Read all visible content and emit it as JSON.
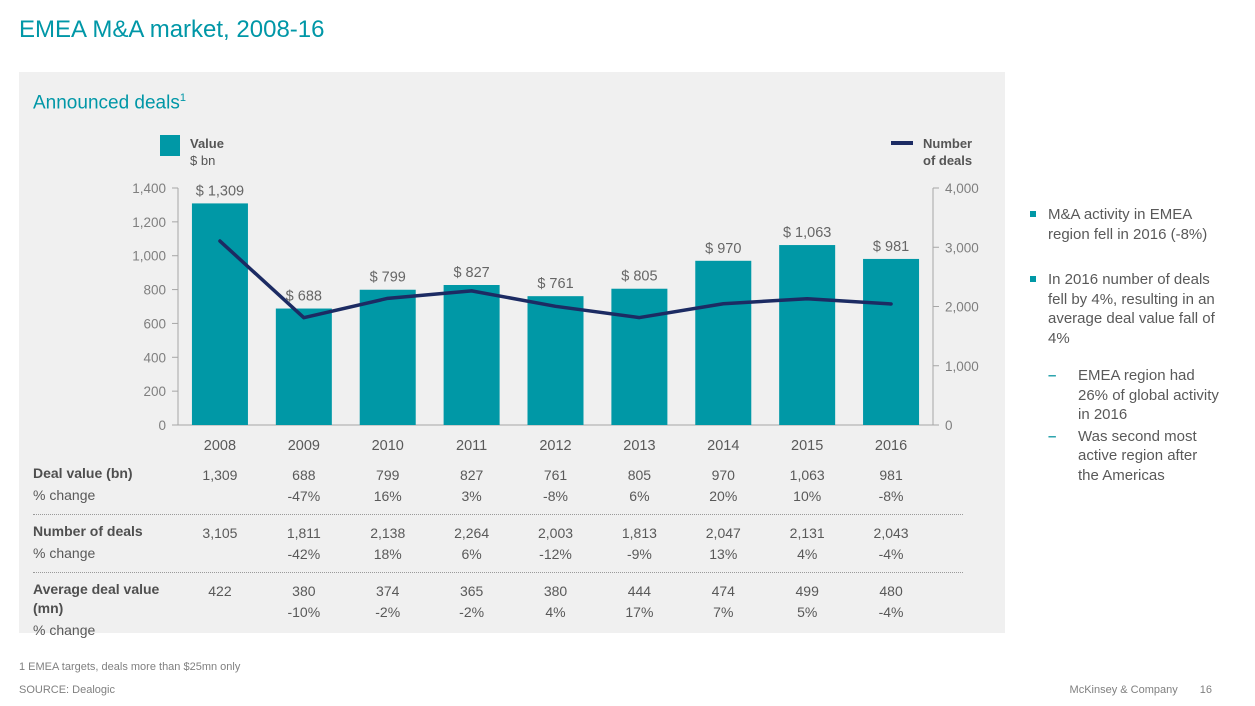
{
  "slide": {
    "title": "EMEA M&A market, 2008-16",
    "panel_title": "Announced deals",
    "panel_title_superscript": "1",
    "footnote": "1 EMEA targets, deals more than $25mn only",
    "source": "SOURCE: Dealogic",
    "footer_brand": "McKinsey & Company",
    "page_number": "16"
  },
  "legend": {
    "bar": {
      "label": "Value",
      "sublabel": "$ bn"
    },
    "line": {
      "label_line1": "Number",
      "label_line2": "of deals"
    }
  },
  "colors": {
    "teal": "#0098A6",
    "navy": "#1C2B63",
    "axis": "#a6a6a6",
    "axis_text": "#7f7f7f",
    "bar_label_text": "#666666",
    "year_text": "#595959"
  },
  "chart_data": {
    "type": "bar",
    "title": "Announced deals",
    "categories": [
      "2008",
      "2009",
      "2010",
      "2011",
      "2012",
      "2013",
      "2014",
      "2015",
      "2016"
    ],
    "series": [
      {
        "name": "Value $ bn",
        "type": "bar",
        "axis": "left",
        "values": [
          1309,
          688,
          799,
          827,
          761,
          805,
          970,
          1063,
          981
        ],
        "labels": [
          "$ 1,309",
          "$ 688",
          "$ 799",
          "$ 827",
          "$ 761",
          "$ 805",
          "$ 970",
          "$ 1,063",
          "$ 981"
        ]
      },
      {
        "name": "Number of deals",
        "type": "line",
        "axis": "right",
        "values": [
          3105,
          1811,
          2138,
          2264,
          2003,
          1813,
          2047,
          2131,
          2043
        ]
      }
    ],
    "left_axis": {
      "min": 0,
      "max": 1400,
      "step": 200,
      "ticks": [
        "0",
        "200",
        "400",
        "600",
        "800",
        "1,000",
        "1,200",
        "1,400"
      ]
    },
    "right_axis": {
      "min": 0,
      "max": 4000,
      "step": 1000,
      "ticks": [
        "0",
        "1,000",
        "2,000",
        "3,000",
        "4,000"
      ]
    },
    "grid": false,
    "legend_position": "top"
  },
  "table": {
    "rows": [
      {
        "label": "Deal value (bn)",
        "sublabel": "% change",
        "values": [
          "1,309",
          "688",
          "799",
          "827",
          "761",
          "805",
          "970",
          "1,063",
          "981"
        ],
        "pct": [
          "",
          "-47%",
          "16%",
          "3%",
          "-8%",
          "6%",
          "20%",
          "10%",
          "-8%"
        ]
      },
      {
        "label": "Number of deals",
        "sublabel": "% change",
        "values": [
          "3,105",
          "1,811",
          "2,138",
          "2,264",
          "2,003",
          "1,813",
          "2,047",
          "2,131",
          "2,043"
        ],
        "pct": [
          "",
          "-42%",
          "18%",
          "6%",
          "-12%",
          "-9%",
          "13%",
          "4%",
          "-4%"
        ]
      },
      {
        "label": "Average deal value (mn)",
        "sublabel": "% change",
        "values": [
          "422",
          "380",
          "374",
          "365",
          "380",
          "444",
          "474",
          "499",
          "480"
        ],
        "pct": [
          "",
          "-10%",
          "-2%",
          "-2%",
          "4%",
          "17%",
          "7%",
          "5%",
          "-4%"
        ]
      }
    ]
  },
  "sidebar": {
    "bullets": [
      {
        "text": "M&A activity in EMEA region fell in 2016 (-8%)"
      },
      {
        "text": "In 2016 number of deals fell by 4%, resulting in an average deal value fall of 4%",
        "sub": [
          "EMEA region had 26% of global activity in 2016",
          "Was second most active region after the Americas"
        ]
      }
    ]
  }
}
